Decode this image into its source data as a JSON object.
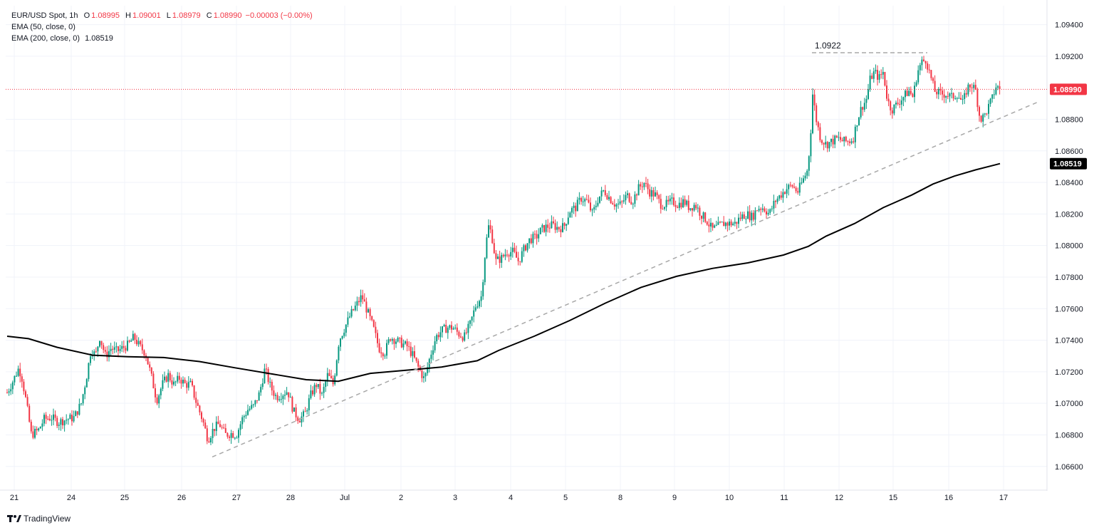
{
  "header": {
    "symbol": "EUR/USD Spot, 1h",
    "open_label": "O",
    "open": "1.08995",
    "high_label": "H",
    "high": "1.09001",
    "low_label": "L",
    "low": "1.08979",
    "close_label": "C",
    "close": "1.08990",
    "change": "−0.00003 (−0.00%)",
    "ema50_label": "EMA (50, close, 0)",
    "ema200_label": "EMA (200, close, 0)",
    "ema200_value": "1.08519"
  },
  "branding": {
    "logo_text": "TradingView",
    "logo_icon": "tradingview-logo-icon"
  },
  "colors": {
    "up": "#089981",
    "down": "#f23645",
    "ema": "#000000",
    "trend": "#a8a8a8",
    "price_line": "#f23645",
    "grid": "#f0f3fa",
    "text": "#131722"
  },
  "chart_data": {
    "type": "candlestick",
    "ylim": [
      1.0645,
      1.0952
    ],
    "y_ticks": [
      "1.09400",
      "1.09200",
      "1.08800",
      "1.08600",
      "1.08400",
      "1.08200",
      "1.08000",
      "1.07800",
      "1.07600",
      "1.07400",
      "1.07200",
      "1.07000",
      "1.06800",
      "1.06600"
    ],
    "x_ticks": [
      "21",
      "24",
      "25",
      "26",
      "27",
      "28",
      "Jul",
      "2",
      "3",
      "4",
      "5",
      "8",
      "9",
      "10",
      "11",
      "12",
      "15",
      "16",
      "17"
    ],
    "close_series": [
      [
        0,
        1.071
      ],
      [
        8,
        1.0705
      ],
      [
        18,
        1.0714
      ],
      [
        26,
        1.0722
      ],
      [
        30,
        1.0718
      ],
      [
        36,
        1.0703
      ],
      [
        44,
        1.068
      ],
      [
        54,
        1.0683
      ],
      [
        62,
        1.069
      ],
      [
        72,
        1.0691
      ],
      [
        82,
        1.0688
      ],
      [
        94,
        1.069
      ],
      [
        104,
        1.0691
      ],
      [
        114,
        1.07
      ],
      [
        122,
        1.0718
      ],
      [
        128,
        1.0735
      ],
      [
        134,
        1.073
      ],
      [
        140,
        1.0742
      ],
      [
        148,
        1.073
      ],
      [
        156,
        1.0735
      ],
      [
        164,
        1.0733
      ],
      [
        172,
        1.0735
      ],
      [
        180,
        1.0737
      ],
      [
        188,
        1.0742
      ],
      [
        196,
        1.0736
      ],
      [
        204,
        1.0732
      ],
      [
        212,
        1.0718
      ],
      [
        220,
        1.0702
      ],
      [
        228,
        1.0712
      ],
      [
        236,
        1.0718
      ],
      [
        244,
        1.0712
      ],
      [
        252,
        1.0716
      ],
      [
        260,
        1.0712
      ],
      [
        268,
        1.0712
      ],
      [
        276,
        1.07
      ],
      [
        284,
        1.069
      ],
      [
        292,
        1.0677
      ],
      [
        300,
        1.0684
      ],
      [
        308,
        1.0687
      ],
      [
        316,
        1.068
      ],
      [
        324,
        1.0681
      ],
      [
        332,
        1.068
      ],
      [
        340,
        1.069
      ],
      [
        348,
        1.0696
      ],
      [
        356,
        1.0698
      ],
      [
        364,
        1.0706
      ],
      [
        372,
        1.0722
      ],
      [
        380,
        1.071
      ],
      [
        388,
        1.0704
      ],
      [
        396,
        1.0706
      ],
      [
        404,
        1.0708
      ],
      [
        412,
        1.0695
      ],
      [
        420,
        1.069
      ],
      [
        428,
        1.0693
      ],
      [
        436,
        1.0705
      ],
      [
        444,
        1.0712
      ],
      [
        452,
        1.0705
      ],
      [
        460,
        1.0718
      ],
      [
        468,
        1.0712
      ],
      [
        476,
        1.074
      ],
      [
        484,
        1.0748
      ],
      [
        492,
        1.0756
      ],
      [
        500,
        1.0762
      ],
      [
        508,
        1.0768
      ],
      [
        516,
        1.0758
      ],
      [
        524,
        1.0748
      ],
      [
        532,
        1.0735
      ],
      [
        540,
        1.0732
      ],
      [
        548,
        1.0742
      ],
      [
        556,
        1.074
      ],
      [
        564,
        1.0738
      ],
      [
        572,
        1.0736
      ],
      [
        580,
        1.073
      ],
      [
        588,
        1.0722
      ],
      [
        596,
        1.0715
      ],
      [
        604,
        1.073
      ],
      [
        612,
        1.0742
      ],
      [
        620,
        1.0746
      ],
      [
        628,
        1.0748
      ],
      [
        636,
        1.0748
      ],
      [
        644,
        1.0744
      ],
      [
        652,
        1.0742
      ],
      [
        660,
        1.075
      ],
      [
        668,
        1.0762
      ],
      [
        676,
        1.0768
      ],
      [
        682,
        1.08
      ],
      [
        686,
        1.0812
      ],
      [
        690,
        1.0808
      ],
      [
        696,
        1.079
      ],
      [
        704,
        1.0792
      ],
      [
        712,
        1.0796
      ],
      [
        720,
        1.0796
      ],
      [
        728,
        1.079
      ],
      [
        736,
        1.0798
      ],
      [
        744,
        1.0804
      ],
      [
        752,
        1.0805
      ],
      [
        760,
        1.081
      ],
      [
        768,
        1.0812
      ],
      [
        776,
        1.0813
      ],
      [
        784,
        1.0811
      ],
      [
        792,
        1.0812
      ],
      [
        800,
        1.0822
      ],
      [
        808,
        1.0824
      ],
      [
        816,
        1.083
      ],
      [
        824,
        1.0828
      ],
      [
        832,
        1.082
      ],
      [
        840,
        1.083
      ],
      [
        848,
        1.0835
      ],
      [
        856,
        1.083
      ],
      [
        864,
        1.0826
      ],
      [
        872,
        1.0826
      ],
      [
        880,
        1.0832
      ],
      [
        888,
        1.0828
      ],
      [
        896,
        1.0836
      ],
      [
        904,
        1.084
      ],
      [
        912,
        1.0834
      ],
      [
        920,
        1.0832
      ],
      [
        928,
        1.0826
      ],
      [
        936,
        1.0826
      ],
      [
        944,
        1.0828
      ],
      [
        952,
        1.0826
      ],
      [
        960,
        1.0828
      ],
      [
        968,
        1.0824
      ],
      [
        976,
        1.0826
      ],
      [
        984,
        1.082
      ],
      [
        992,
        1.0816
      ],
      [
        1000,
        1.081
      ],
      [
        1008,
        1.0812
      ],
      [
        1016,
        1.0814
      ],
      [
        1024,
        1.0814
      ],
      [
        1032,
        1.0814
      ],
      [
        1040,
        1.0818
      ],
      [
        1048,
        1.082
      ],
      [
        1056,
        1.0818
      ],
      [
        1064,
        1.0824
      ],
      [
        1072,
        1.0824
      ],
      [
        1080,
        1.082
      ],
      [
        1088,
        1.0828
      ],
      [
        1096,
        1.0832
      ],
      [
        1104,
        1.0836
      ],
      [
        1112,
        1.0838
      ],
      [
        1120,
        1.0834
      ],
      [
        1128,
        1.0842
      ],
      [
        1134,
        1.0848
      ],
      [
        1138,
        1.087
      ],
      [
        1141,
        1.0896
      ],
      [
        1146,
        1.088
      ],
      [
        1152,
        1.0868
      ],
      [
        1160,
        1.0864
      ],
      [
        1168,
        1.0866
      ],
      [
        1176,
        1.0868
      ],
      [
        1184,
        1.0866
      ],
      [
        1192,
        1.0866
      ],
      [
        1198,
        1.0868
      ],
      [
        1204,
        1.088
      ],
      [
        1210,
        1.0888
      ],
      [
        1216,
        1.0892
      ],
      [
        1222,
        1.0906
      ],
      [
        1228,
        1.091
      ],
      [
        1234,
        1.0906
      ],
      [
        1240,
        1.091
      ],
      [
        1246,
        1.0892
      ],
      [
        1252,
        1.0886
      ],
      [
        1260,
        1.089
      ],
      [
        1268,
        1.0894
      ],
      [
        1276,
        1.0898
      ],
      [
        1282,
        1.0894
      ],
      [
        1288,
        1.091
      ],
      [
        1294,
        1.0916
      ],
      [
        1300,
        1.0918
      ],
      [
        1306,
        1.0908
      ],
      [
        1312,
        1.0898
      ],
      [
        1320,
        1.0896
      ],
      [
        1328,
        1.0896
      ],
      [
        1336,
        1.0894
      ],
      [
        1344,
        1.0896
      ],
      [
        1352,
        1.089
      ],
      [
        1358,
        1.09
      ],
      [
        1364,
        1.0902
      ],
      [
        1370,
        1.0898
      ],
      [
        1376,
        1.088
      ],
      [
        1382,
        1.0882
      ],
      [
        1388,
        1.0888
      ],
      [
        1394,
        1.0894
      ],
      [
        1398,
        1.0901
      ],
      [
        1404,
        1.0899
      ]
    ],
    "ema200_series": [
      [
        10,
        1.07425
      ],
      [
        40,
        1.0741
      ],
      [
        80,
        1.07355
      ],
      [
        130,
        1.07305
      ],
      [
        180,
        1.07295
      ],
      [
        230,
        1.0729
      ],
      [
        280,
        1.07265
      ],
      [
        330,
        1.07225
      ],
      [
        390,
        1.0718
      ],
      [
        430,
        1.0715
      ],
      [
        475,
        1.0714
      ],
      [
        520,
        1.0719
      ],
      [
        570,
        1.0721
      ],
      [
        620,
        1.0723
      ],
      [
        670,
        1.0727
      ],
      [
        700,
        1.07335
      ],
      [
        750,
        1.07425
      ],
      [
        800,
        1.07525
      ],
      [
        850,
        1.07635
      ],
      [
        900,
        1.07735
      ],
      [
        950,
        1.07805
      ],
      [
        1000,
        1.07855
      ],
      [
        1050,
        1.0789
      ],
      [
        1100,
        1.0794
      ],
      [
        1135,
        1.07995
      ],
      [
        1160,
        1.0806
      ],
      [
        1200,
        1.0814
      ],
      [
        1240,
        1.0824
      ],
      [
        1280,
        1.0832
      ],
      [
        1310,
        1.0839
      ],
      [
        1340,
        1.0844
      ],
      [
        1370,
        1.0848
      ],
      [
        1404,
        1.08519
      ]
    ],
    "trendline": {
      "from": [
        298,
        1.0666
      ],
      "to": [
        1460,
        1.08915
      ]
    },
    "resistance": {
      "from": [
        1140,
        1.09222
      ],
      "to": [
        1302,
        1.09222
      ],
      "label": "1.0922"
    },
    "current_price": {
      "value": 1.0899,
      "label": "1.08990"
    },
    "ema200_last": {
      "value": 1.08519,
      "label": "1.08519"
    }
  }
}
